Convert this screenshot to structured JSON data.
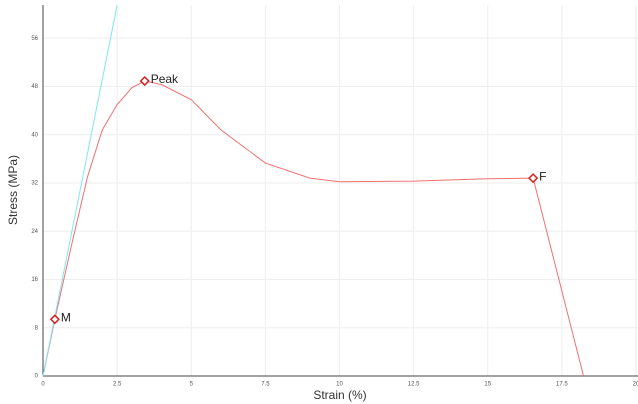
{
  "chart_data": {
    "type": "line",
    "x_label": "Strain (%)",
    "y_label": "Stress (MPa)",
    "xlim": [
      0,
      20
    ],
    "ylim": [
      0,
      61.5
    ],
    "xticks": [
      0,
      2.5,
      5,
      7.5,
      10,
      12.5,
      15,
      17.5,
      20
    ],
    "yticks": [
      0,
      8,
      16,
      24,
      32,
      40,
      48,
      56
    ],
    "grid": true,
    "series": [
      {
        "color": "#f07070",
        "x": [
          0,
          0.4,
          1,
          1.5,
          2,
          2.5,
          3,
          3.43,
          4,
          5,
          6,
          7.5,
          9,
          10,
          12.5,
          15,
          16.53,
          18.23
        ],
        "values": [
          0,
          9.4,
          22.5,
          33,
          40.8,
          45,
          47.8,
          48.9,
          48.3,
          45.8,
          40.8,
          35.3,
          32.8,
          32.2,
          32.3,
          32.7,
          32.8,
          0
        ]
      },
      {
        "color": "#7fe6f0",
        "x": [
          0,
          2.5
        ],
        "values": [
          0,
          61.5
        ]
      }
    ],
    "points": [
      {
        "label": "M",
        "x": 0.4,
        "y": 9.4
      },
      {
        "label": "Peak",
        "x": 3.43,
        "y": 48.9
      },
      {
        "label": "F",
        "x": 16.53,
        "y": 32.8
      }
    ],
    "point_color": "#d62020"
  }
}
